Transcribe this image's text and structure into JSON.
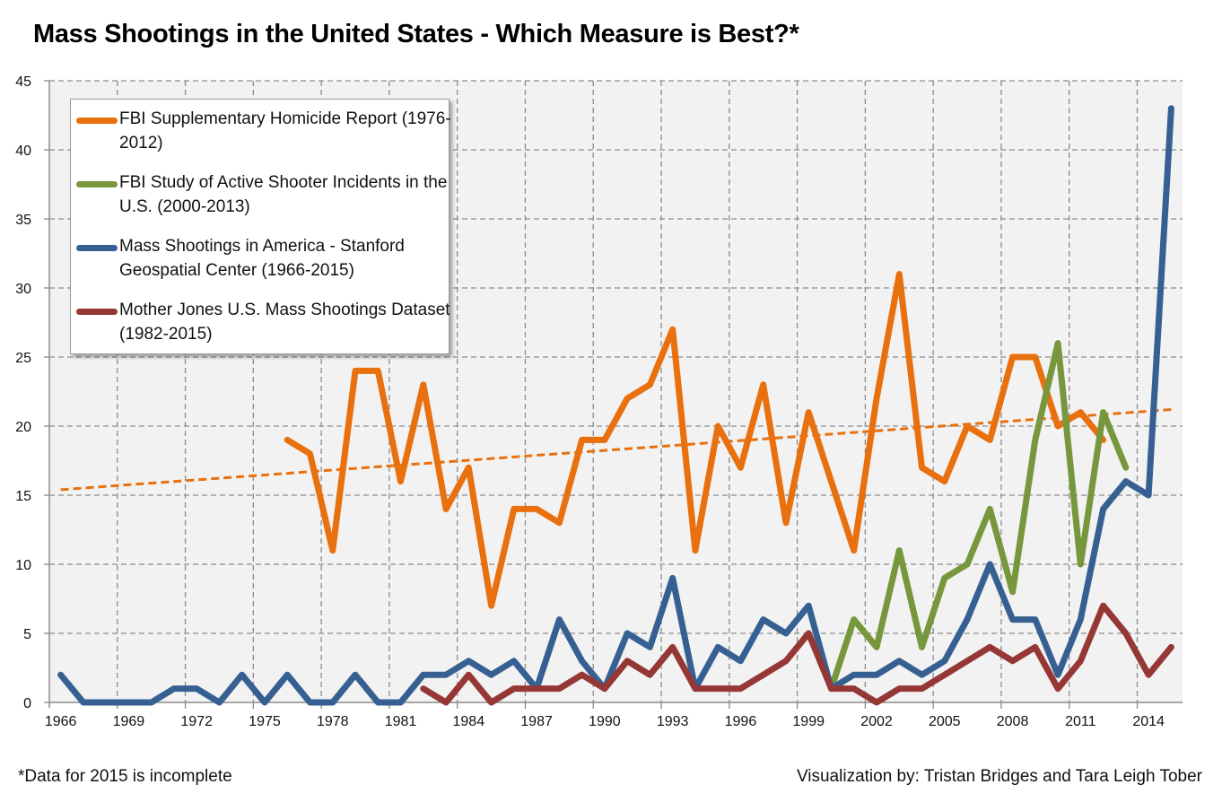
{
  "chart_data": {
    "type": "line",
    "title": "Mass Shootings in the United States - Which Measure is Best?*",
    "xlabel": "",
    "ylabel": "",
    "ylim": [
      0,
      45
    ],
    "yticks": [
      0,
      5,
      10,
      15,
      20,
      25,
      30,
      35,
      40,
      45
    ],
    "xlim": [
      1966,
      2015
    ],
    "xtick_labels": [
      "1966",
      "1969",
      "1972",
      "1975",
      "1978",
      "1981",
      "1984",
      "1987",
      "1990",
      "1993",
      "1996",
      "1999",
      "2002",
      "2005",
      "2008",
      "2011",
      "2014"
    ],
    "grid": true,
    "legend_position": "top-left",
    "series": [
      {
        "name": "FBI Supplementary Homicide Report (1976-2012)",
        "color": "#E8700E",
        "start_year": 1976,
        "values": [
          19,
          18,
          11,
          24,
          24,
          16,
          23,
          14,
          17,
          7,
          14,
          14,
          13,
          19,
          19,
          22,
          23,
          27,
          11,
          20,
          17,
          23,
          13,
          21,
          16,
          11,
          22,
          31,
          17,
          16,
          20,
          19,
          25,
          25,
          20,
          21,
          19
        ]
      },
      {
        "name": "FBI Study of Active Shooter Incidents in the U.S. (2000-2013)",
        "color": "#77973D",
        "start_year": 2000,
        "values": [
          1,
          6,
          4,
          11,
          4,
          9,
          10,
          14,
          8,
          19,
          26,
          10,
          21,
          17
        ]
      },
      {
        "name": "Mass Shootings in America - Stanford Geospatial Center (1966-2015)",
        "color": "#376092",
        "start_year": 1966,
        "values": [
          2,
          0,
          0,
          0,
          0,
          1,
          1,
          0,
          2,
          0,
          2,
          0,
          0,
          2,
          0,
          0,
          2,
          2,
          3,
          2,
          3,
          1,
          6,
          3,
          1,
          5,
          4,
          9,
          1,
          4,
          3,
          6,
          5,
          7,
          1,
          2,
          2,
          3,
          2,
          3,
          6,
          10,
          6,
          6,
          2,
          6,
          14,
          16,
          15,
          43
        ]
      },
      {
        "name": "Mother Jones U.S. Mass Shootings Dataset (1982-2015)",
        "color": "#953735",
        "start_year": 1982,
        "values": [
          1,
          0,
          2,
          0,
          1,
          1,
          1,
          2,
          1,
          3,
          2,
          4,
          1,
          1,
          1,
          2,
          3,
          5,
          1,
          1,
          0,
          1,
          1,
          2,
          3,
          4,
          3,
          4,
          1,
          3,
          7,
          5,
          2,
          4
        ]
      }
    ],
    "trendline": {
      "series": "FBI Supplementary Homicide Report (1976-2012)",
      "style": "dashed linear",
      "color": "#E8700E",
      "from": {
        "year": 1966,
        "value": 15.4
      },
      "to": {
        "year": 2015,
        "value": 21.2
      }
    },
    "annotations": {
      "footnote": "*Data for 2015 is incomplete",
      "credit": "Visualization by: Tristan Bridges and Tara Leigh Tober"
    }
  },
  "legend": {
    "items": [
      {
        "label": "FBI Supplementary Homicide Report (1976-2012)",
        "color": "#E8700E"
      },
      {
        "label": "FBI Study of Active Shooter Incidents in the U.S. (2000-2013)",
        "color": "#77973D"
      },
      {
        "label": "Mass Shootings in America - Stanford Geospatial Center (1966-2015)",
        "color": "#376092"
      },
      {
        "label": "Mother Jones U.S. Mass Shootings Dataset (1982-2015)",
        "color": "#953735"
      }
    ]
  }
}
